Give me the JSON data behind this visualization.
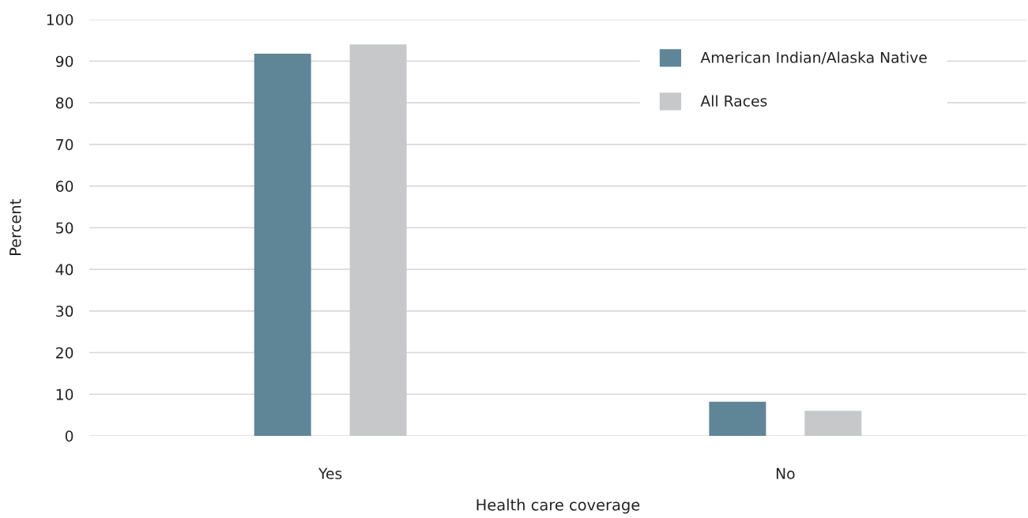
{
  "chart_data": {
    "type": "bar",
    "xlabel": "Health care coverage",
    "ylabel": "Percent",
    "categories": [
      "Yes",
      "No"
    ],
    "series": [
      {
        "name": "American Indian/Alaska Native",
        "color": "#5f8696",
        "values": [
          91.8,
          8.2
        ]
      },
      {
        "name": "All Races",
        "color": "#c7c8ca",
        "values": [
          94,
          6
        ]
      }
    ],
    "ylim": [
      0,
      100
    ],
    "yticks": [
      0,
      10,
      20,
      30,
      40,
      50,
      60,
      70,
      80,
      90,
      100
    ],
    "grid": "y",
    "legend": "top right"
  }
}
